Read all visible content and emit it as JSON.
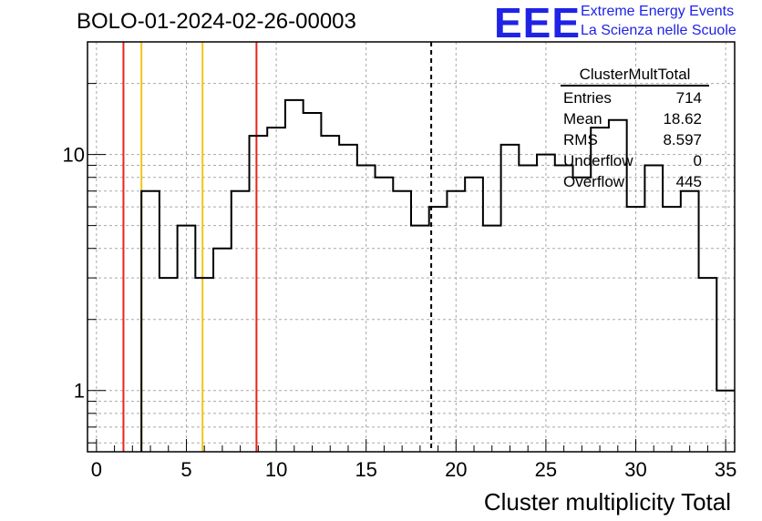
{
  "header": {
    "title": "BOLO-01-2024-02-26-00003",
    "logo_text": "EEE",
    "logo_line1": "Extreme Energy Events",
    "logo_line2": "La Scienza nelle Scuole"
  },
  "stats": {
    "name": "ClusterMultTotal",
    "rows": [
      {
        "label": "Entries",
        "value": "714"
      },
      {
        "label": "Mean",
        "value": "18.62"
      },
      {
        "label": "RMS",
        "value": "8.597"
      },
      {
        "label": "Underflow",
        "value": "0"
      },
      {
        "label": "Overflow",
        "value": "445"
      }
    ]
  },
  "chart_data": {
    "type": "histogram",
    "title": "BOLO-01-2024-02-26-00003",
    "xlabel": "Cluster multiplicity Total",
    "ylabel": "",
    "xlim": [
      -0.5,
      35.5
    ],
    "ylim": [
      0.55,
      30
    ],
    "yscale": "log",
    "grid": true,
    "x_ticks": [
      0,
      5,
      10,
      15,
      20,
      25,
      30,
      35
    ],
    "y_tick_labels": [
      "1",
      "10"
    ],
    "bin_edges": [
      2.5,
      3.5,
      4.5,
      5.5,
      6.5,
      7.5,
      8.5,
      9.5,
      10.5,
      11.5,
      12.5,
      13.5,
      14.5,
      15.5,
      16.5,
      17.5,
      18.5,
      19.5,
      20.5,
      21.5,
      22.5,
      23.5,
      24.5,
      25.5,
      26.5,
      27.5,
      28.5,
      29.5,
      30.5,
      31.5,
      32.5,
      33.5,
      34.5,
      35.5
    ],
    "counts": [
      7,
      3,
      5,
      3,
      4,
      7,
      12,
      13,
      17,
      15,
      12,
      11,
      9,
      8,
      7,
      5,
      6,
      7,
      8,
      5,
      11,
      9,
      10,
      9,
      8,
      13,
      14,
      6,
      9,
      6,
      7,
      3,
      1
    ],
    "reference_lines": [
      {
        "x": 1.5,
        "color": "#e8231a",
        "style": "solid"
      },
      {
        "x": 2.5,
        "color": "#f2c417",
        "style": "solid"
      },
      {
        "x": 5.9,
        "color": "#f2c417",
        "style": "solid"
      },
      {
        "x": 8.9,
        "color": "#e8231a",
        "style": "solid"
      },
      {
        "x": 18.62,
        "color": "#000000",
        "style": "dashed"
      }
    ],
    "histogram_color": "#000000",
    "legend": "top-right statistics box"
  }
}
